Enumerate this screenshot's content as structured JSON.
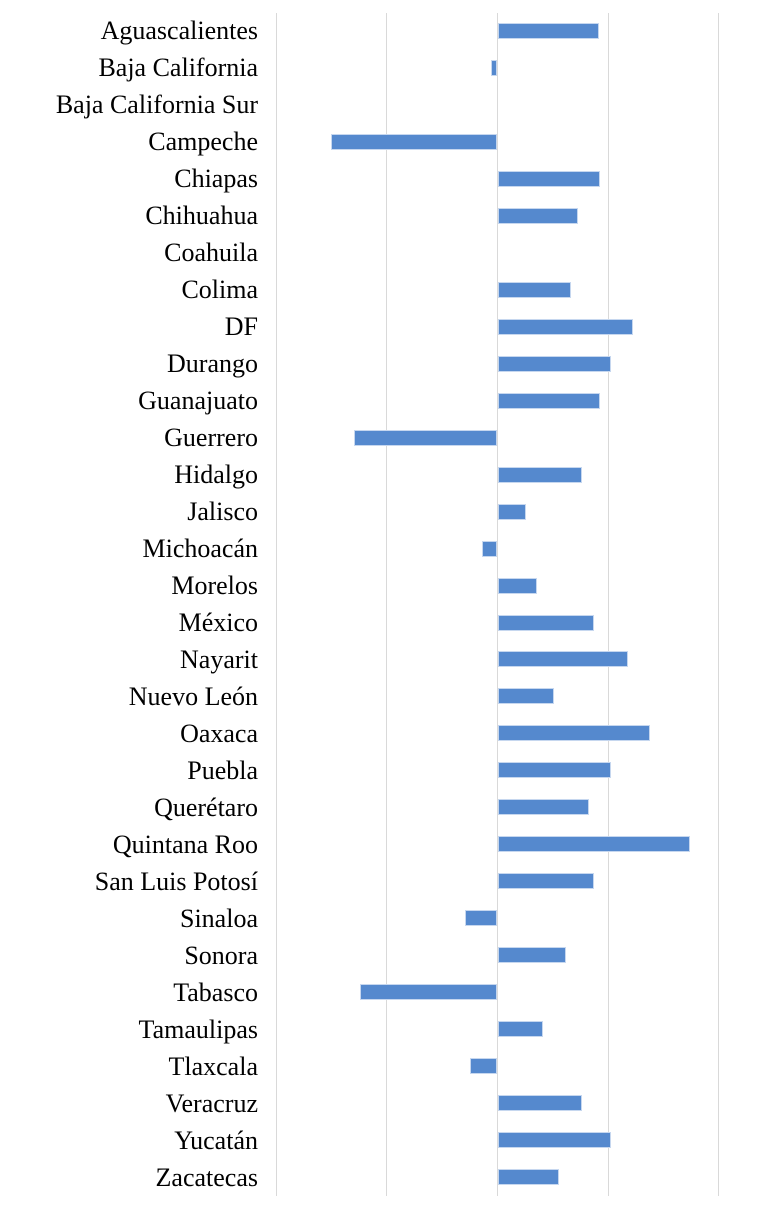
{
  "chart_data": {
    "type": "bar",
    "orientation": "horizontal",
    "title": "",
    "xlabel": "",
    "ylabel": "",
    "legend": null,
    "axis_tick_labels_visible": false,
    "gridlines_at": [
      -2,
      -1,
      0,
      1,
      2
    ],
    "gridline_step": 1,
    "xlim": [
      -2,
      2.58
    ],
    "zero_baseline": 0,
    "categories": [
      "Aguascalientes",
      "Baja California",
      "Baja California Sur",
      "Campeche",
      "Chiapas",
      "Chihuahua",
      "Coahuila",
      "Colima",
      "DF",
      "Durango",
      "Guanajuato",
      "Guerrero",
      "Hidalgo",
      "Jalisco",
      "Michoacán",
      "Morelos",
      "México",
      "Nayarit",
      "Nuevo León",
      "Oaxaca",
      "Puebla",
      "Querétaro",
      "Quintana Roo",
      "San Luis Potosí",
      "Sinaloa",
      "Sonora",
      "Tabasco",
      "Tamaulipas",
      "Tlaxcala",
      "Veracruz",
      "Yucatán",
      "Zacatecas"
    ],
    "values": [
      0.91,
      -0.05,
      0,
      -1.5,
      0.92,
      0.72,
      0,
      0.66,
      1.22,
      1.02,
      0.92,
      -1.29,
      0.76,
      0.25,
      -0.14,
      0.35,
      0.87,
      1.17,
      0.51,
      1.37,
      1.02,
      0.82,
      1.73,
      0.87,
      -0.29,
      0.61,
      -1.24,
      0.41,
      -0.24,
      0.76,
      1.02,
      0.55
    ],
    "colors": {
      "bar_fill": "#5589ce",
      "bar_edge": "#c6d7ef",
      "gridline": "#d9d9d9",
      "label_text": "#000000",
      "background": "#ffffff"
    }
  }
}
